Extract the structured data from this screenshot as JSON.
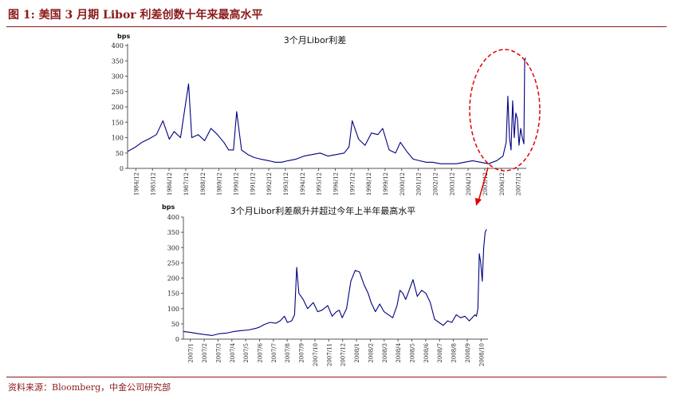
{
  "header": {
    "title": "图 1:  美国 3 月期 Libor 利差创数十年来最高水平"
  },
  "footer": {
    "source": "资料来源：Bloomberg，中金公司研究部"
  },
  "colors": {
    "line": "#000080",
    "accent": "#8a1a1a",
    "highlight": "#e00000"
  },
  "chart_data": [
    {
      "type": "line",
      "title": "3个月Libor利差",
      "ylabel": "bps",
      "ylim": [
        0,
        400
      ],
      "yticks": [
        0,
        50,
        100,
        150,
        200,
        250,
        300,
        350,
        400
      ],
      "x_tick_labels": [
        "1984/12",
        "1985/12",
        "1986/12",
        "1987/12",
        "1988/12",
        "1989/12",
        "1990/12",
        "1991/12",
        "1992/12",
        "1993/12",
        "1994/12",
        "1995/12",
        "1996/12",
        "1997/12",
        "1998/12",
        "1999/12",
        "2000/12",
        "2001/12",
        "2002/12",
        "2003/12",
        "2004/12",
        "2005/12",
        "2006/12",
        "2007/12"
      ],
      "grid": false,
      "annotation": "red dashed ellipse around 2007–2008 spike",
      "series": [
        {
          "x": [
            1984.0,
            1984.5,
            1984.9,
            1985.3,
            1985.8,
            1986.2,
            1986.6,
            1986.9,
            1987.3,
            1987.6,
            1987.8,
            1988.0,
            1988.4,
            1988.8,
            1989.2,
            1989.6,
            1990.0,
            1990.3,
            1990.6,
            1990.8,
            1991.1,
            1991.5,
            1991.9,
            1992.3,
            1992.8,
            1993.2,
            1993.6,
            1994.0,
            1994.5,
            1995.0,
            1995.5,
            1996.0,
            1996.5,
            1997.0,
            1997.5,
            1997.8,
            1998.0,
            1998.4,
            1998.8,
            1999.2,
            1999.6,
            1999.9,
            2000.3,
            2000.7,
            2001.0,
            2001.4,
            2001.8,
            2002.2,
            2002.6,
            2003.0,
            2003.5,
            2004.0,
            2004.5,
            2005.0,
            2005.5,
            2006.0,
            2006.5,
            2007.0,
            2007.4,
            2007.6,
            2007.7,
            2007.8,
            2007.9,
            2008.0,
            2008.1,
            2008.2,
            2008.3,
            2008.4,
            2008.5,
            2008.6,
            2008.7,
            2008.75,
            2008.8
          ],
          "values": [
            55,
            70,
            85,
            95,
            110,
            155,
            95,
            120,
            100,
            205,
            275,
            100,
            110,
            90,
            130,
            110,
            85,
            60,
            60,
            185,
            60,
            45,
            35,
            30,
            25,
            20,
            20,
            25,
            30,
            40,
            45,
            50,
            40,
            45,
            50,
            70,
            155,
            95,
            75,
            115,
            110,
            130,
            60,
            50,
            85,
            55,
            30,
            25,
            20,
            20,
            15,
            15,
            15,
            20,
            25,
            20,
            15,
            25,
            40,
            85,
            235,
            100,
            60,
            220,
            100,
            180,
            160,
            75,
            130,
            100,
            80,
            350,
            360
          ]
        }
      ]
    },
    {
      "type": "line",
      "title": "3个月Libor利差飙升并超过今年上半年最高水平",
      "ylabel": "bps",
      "ylim": [
        0,
        400
      ],
      "yticks": [
        0,
        50,
        100,
        150,
        200,
        250,
        300,
        350,
        400
      ],
      "x_tick_labels": [
        "2007/1",
        "2007/2",
        "2007/3",
        "2007/4",
        "2007/5",
        "2007/6",
        "2007/7",
        "2007/8",
        "2007/9",
        "2007/10",
        "2007/11",
        "2007/12",
        "2008/1",
        "2008/2",
        "2008/3",
        "2008/4",
        "2008/5",
        "2008/6",
        "2008/7",
        "2008/8",
        "2008/9",
        "2008/10"
      ],
      "grid": false,
      "series": [
        {
          "x": [
            0,
            0.5,
            1,
            1.5,
            2,
            2.5,
            3,
            3.5,
            4,
            4.5,
            5,
            5.3,
            5.6,
            6,
            6.4,
            6.7,
            7,
            7.2,
            7.5,
            7.7,
            7.85,
            8,
            8.3,
            8.6,
            9,
            9.3,
            9.6,
            10,
            10.3,
            10.6,
            10.8,
            11,
            11.3,
            11.6,
            11.9,
            12.2,
            12.5,
            12.8,
            13,
            13.3,
            13.6,
            13.9,
            14.2,
            14.5,
            14.8,
            15,
            15.2,
            15.4,
            15.6,
            15.9,
            16.2,
            16.5,
            16.8,
            17.1,
            17.4,
            17.7,
            18,
            18.3,
            18.6,
            18.9,
            19.2,
            19.5,
            19.8,
            20,
            20.2,
            20.3,
            20.4,
            20.5,
            20.6,
            20.7,
            20.8,
            20.9,
            21
          ],
          "values": [
            25,
            22,
            18,
            15,
            12,
            18,
            20,
            25,
            28,
            30,
            35,
            40,
            48,
            55,
            52,
            60,
            75,
            55,
            60,
            80,
            235,
            150,
            130,
            100,
            120,
            90,
            95,
            110,
            75,
            90,
            95,
            70,
            100,
            190,
            225,
            220,
            180,
            150,
            120,
            90,
            115,
            90,
            80,
            70,
            110,
            160,
            150,
            130,
            155,
            195,
            140,
            160,
            150,
            120,
            65,
            55,
            45,
            60,
            55,
            80,
            70,
            75,
            60,
            70,
            80,
            75,
            100,
            280,
            250,
            190,
            300,
            350,
            360
          ]
        }
      ]
    }
  ]
}
